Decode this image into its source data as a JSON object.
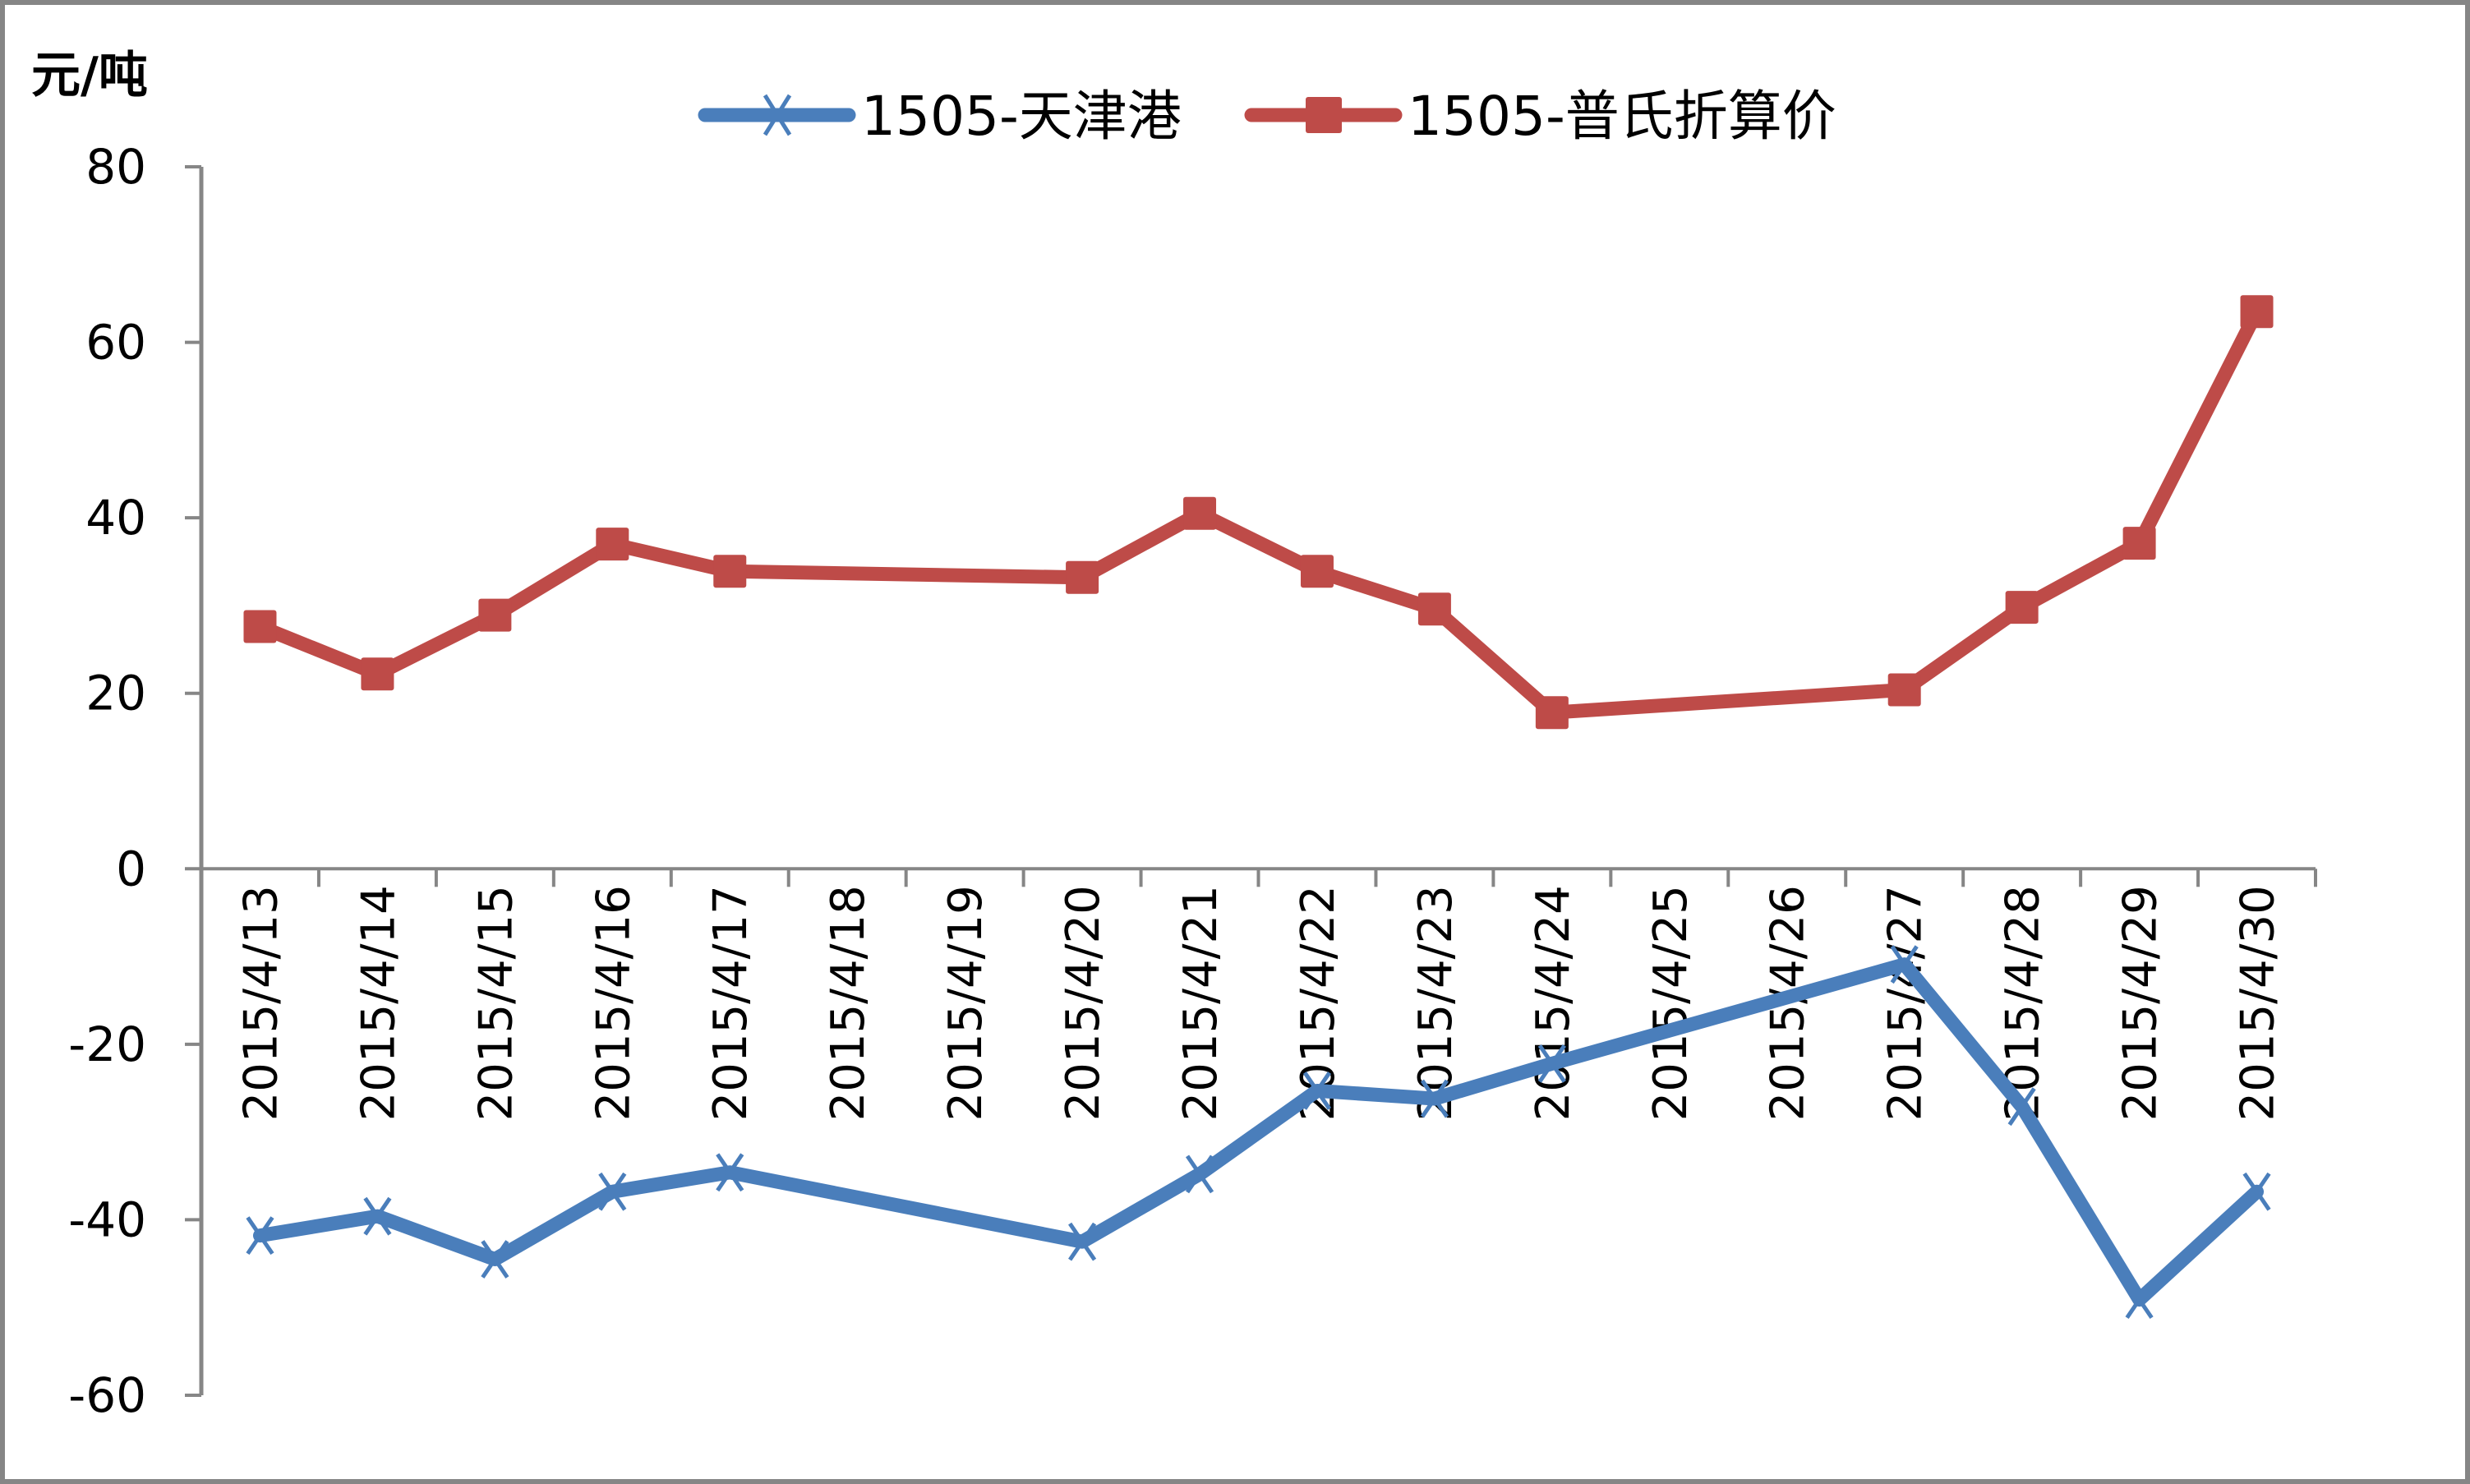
{
  "chart_data": {
    "type": "line",
    "title": "",
    "ylabel": "元/吨",
    "xlabel": "",
    "ylim": [
      -60,
      80
    ],
    "yticks": [
      80,
      60,
      40,
      20,
      0,
      -20,
      -40,
      -60
    ],
    "grid": false,
    "legend_position": "top",
    "categories": [
      "2015/4/13",
      "2015/4/14",
      "2015/4/15",
      "2015/4/16",
      "2015/4/17",
      "2015/4/18",
      "2015/4/19",
      "2015/4/20",
      "2015/4/21",
      "2015/4/22",
      "2015/4/23",
      "2015/4/24",
      "2015/4/25",
      "2015/4/26",
      "2015/4/27",
      "2015/4/28",
      "2015/4/29",
      "2015/4/30"
    ],
    "series": [
      {
        "name": "1505-天津港",
        "color": "#4A7EBB",
        "marker": "x",
        "values": [
          -41.8,
          -39.6,
          -44.5,
          -36.8,
          -34.6,
          null,
          null,
          -42.5,
          -34.8,
          -25.3,
          -26.2,
          -22.2,
          null,
          null,
          -10.9,
          -27.1,
          -49.1,
          -36.8
        ]
      },
      {
        "name": "1505-普氏折算价",
        "color": "#BE4B48",
        "marker": "square",
        "values": [
          27.6,
          22.2,
          28.9,
          37.0,
          33.9,
          null,
          null,
          33.2,
          40.5,
          33.9,
          29.6,
          17.8,
          null,
          null,
          20.4,
          29.8,
          37.1,
          63.5
        ]
      }
    ]
  },
  "ui": {
    "unit_label": "元/吨",
    "legend": [
      "1505-天津港",
      "1505-普氏折算价"
    ]
  }
}
